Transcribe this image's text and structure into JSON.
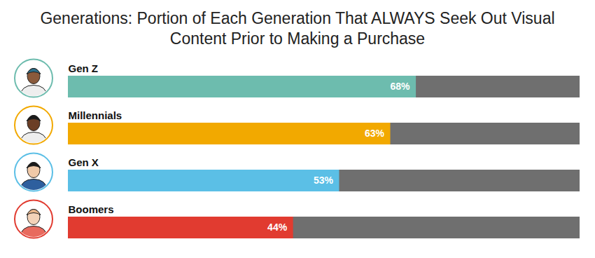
{
  "chart_data": {
    "type": "bar",
    "title": "Generations: Portion of Each Generation That ALWAYS Seek Out Visual Content Prior to Making a Purchase",
    "orientation": "horizontal",
    "categories": [
      "Gen Z",
      "Millennials",
      "Gen X",
      "Boomers"
    ],
    "values": [
      68,
      63,
      53,
      44
    ],
    "value_labels": [
      "68%",
      "63%",
      "53%",
      "44%"
    ],
    "colors": [
      "#6dbcae",
      "#f2a900",
      "#5bbfe6",
      "#e13b30"
    ],
    "xlim": [
      0,
      100
    ],
    "data_labels": true,
    "tick_labels": false,
    "grid": false
  }
}
